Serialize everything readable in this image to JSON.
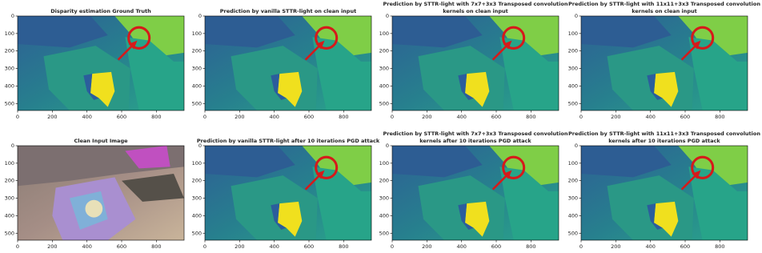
{
  "panels": [
    {
      "title": [
        "Disparity estimation Ground Truth"
      ],
      "xlim": [
        0,
        960
      ],
      "ylim": [
        540,
        0
      ],
      "xticks": [
        0,
        200,
        400,
        600,
        800
      ],
      "yticks": [
        0,
        100,
        200,
        300,
        400,
        500
      ]
    },
    {
      "title": [
        "Prediction by vanilla STTR-light on clean input"
      ],
      "xlim": [
        0,
        960
      ],
      "ylim": [
        540,
        0
      ],
      "xticks": [
        0,
        200,
        400,
        600,
        800
      ],
      "yticks": [
        0,
        100,
        200,
        300,
        400,
        500
      ]
    },
    {
      "title": [
        "Prediction by STTR-light with 7x7+3x3 Transposed convolution",
        "kernels on clean input"
      ],
      "xlim": [
        0,
        960
      ],
      "ylim": [
        540,
        0
      ],
      "xticks": [
        0,
        200,
        400,
        600,
        800
      ],
      "yticks": [
        0,
        100,
        200,
        300,
        400,
        500
      ]
    },
    {
      "title": [
        "Prediction by STTR-light with 11x11+3x3 Transposed convolution",
        "kernels on clean input"
      ],
      "xlim": [
        0,
        960
      ],
      "ylim": [
        540,
        0
      ],
      "xticks": [
        0,
        200,
        400,
        600,
        800
      ],
      "yticks": [
        0,
        100,
        200,
        300,
        400,
        500
      ]
    },
    {
      "title": [
        "Clean Input Image"
      ],
      "xlim": [
        0,
        960
      ],
      "ylim": [
        540,
        0
      ],
      "xticks": [
        0,
        200,
        400,
        600,
        800
      ],
      "yticks": [
        0,
        100,
        200,
        300,
        400,
        500
      ]
    },
    {
      "title": [
        "Prediction by vanilla STTR-light after 10 iterations PGD attack"
      ],
      "xlim": [
        0,
        960
      ],
      "ylim": [
        540,
        0
      ],
      "xticks": [
        0,
        200,
        400,
        600,
        800
      ],
      "yticks": [
        0,
        100,
        200,
        300,
        400,
        500
      ]
    },
    {
      "title": [
        "Prediction by STTR-light with 7x7+3x3 Transposed convolution",
        "kernels after 10 iterations PGD attack"
      ],
      "xlim": [
        0,
        960
      ],
      "ylim": [
        540,
        0
      ],
      "xticks": [
        0,
        200,
        400,
        600,
        800
      ],
      "yticks": [
        0,
        100,
        200,
        300,
        400,
        500
      ]
    },
    {
      "title": [
        "Prediction by STTR-light with 11x11+3x3 Transposed convolution",
        "kernels after 10 iterations PGD attack"
      ],
      "xlim": [
        0,
        960
      ],
      "ylim": [
        540,
        0
      ],
      "xticks": [
        0,
        200,
        400,
        600,
        800
      ],
      "yticks": [
        0,
        100,
        200,
        300,
        400,
        500
      ]
    }
  ]
}
